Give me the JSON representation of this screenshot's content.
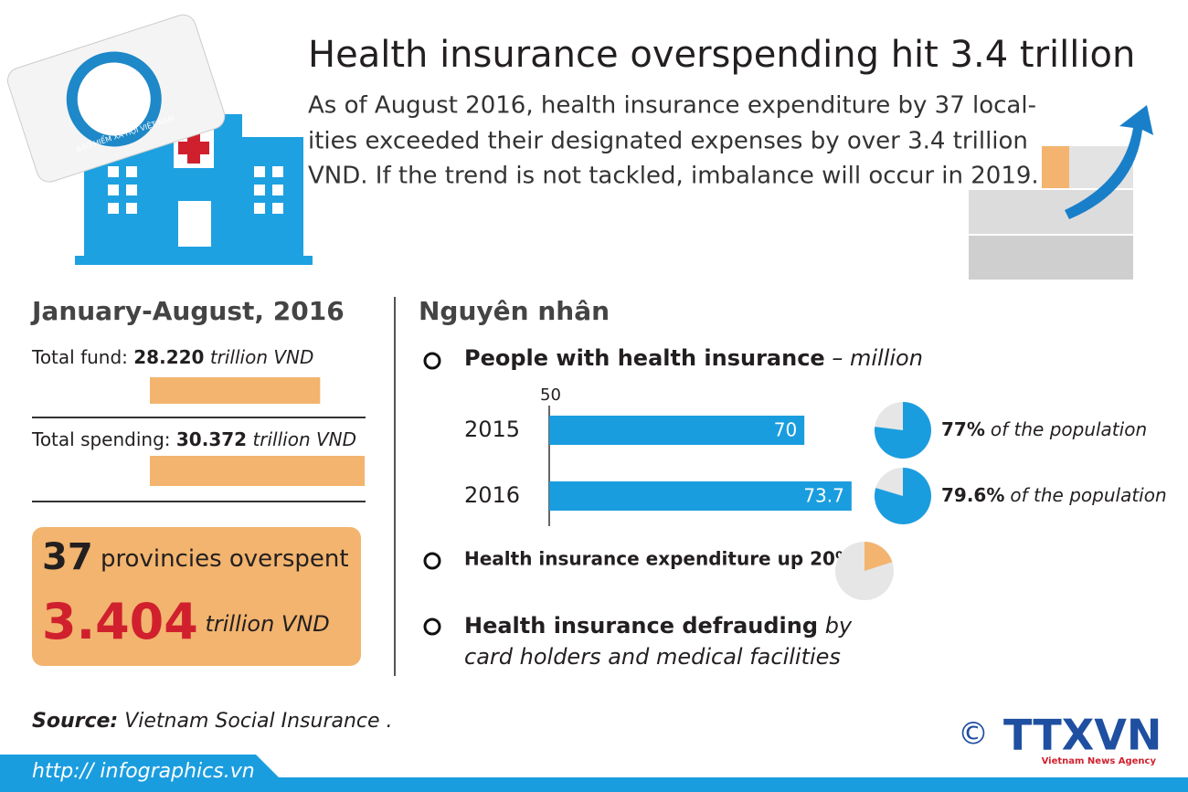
{
  "header": {
    "title": "Health insurance overspending hit 3.4 trillion",
    "description": [
      "As of August 2016, health insurance expenditure by 37 local-",
      "ities exceeded their designated expenses by over 3.4 trillion",
      "VND. If the trend is not tackled, imbalance will occur in 2019."
    ],
    "card_text": "BẢO HIỂM XÃ HỘI VIỆT NAM"
  },
  "summary": {
    "title": "January-August, 2016",
    "xlim": [
      20,
      32
    ],
    "items": [
      {
        "label": "Total fund:",
        "value": 28.22,
        "value_label": "28.220",
        "unit": "trillion VND"
      },
      {
        "label": "Total spending:",
        "value": 30.372,
        "value_label": "30.372",
        "unit": "trillion VND"
      }
    ],
    "provinces": {
      "value": 37,
      "label": "provincies overspent"
    },
    "overspend": {
      "value": 3.404,
      "value_label": "3.404",
      "unit": "trillion VND"
    }
  },
  "causes": {
    "title": "Nguyên nhân",
    "insured": {
      "type": "bar",
      "title": "People with health insurance",
      "unit": "– million",
      "xlim": [
        50,
        75
      ],
      "xticks": [
        50
      ],
      "color": "#1a9ddf",
      "categories": [
        "2015",
        "2016"
      ],
      "values": [
        70,
        73.7
      ],
      "share_values": [
        77,
        79.6
      ],
      "share_labels": [
        "77%",
        "79.6%"
      ],
      "share_text": "of the population"
    },
    "expenditure": {
      "text": "Health insurance expenditure up 20%",
      "value": 20,
      "color": "#f2b46e"
    },
    "fraud": {
      "bold": "Health insurance defrauding",
      "italic": [
        "by",
        "card holders and medical facilities"
      ]
    }
  },
  "source": {
    "label": "Source:",
    "text": "Vietnam Social Insurance ."
  },
  "footer": {
    "url": "http:// infographics.vn",
    "copyright": "©",
    "logo": "TTXVN",
    "agency": "Vietnam News Agency"
  }
}
